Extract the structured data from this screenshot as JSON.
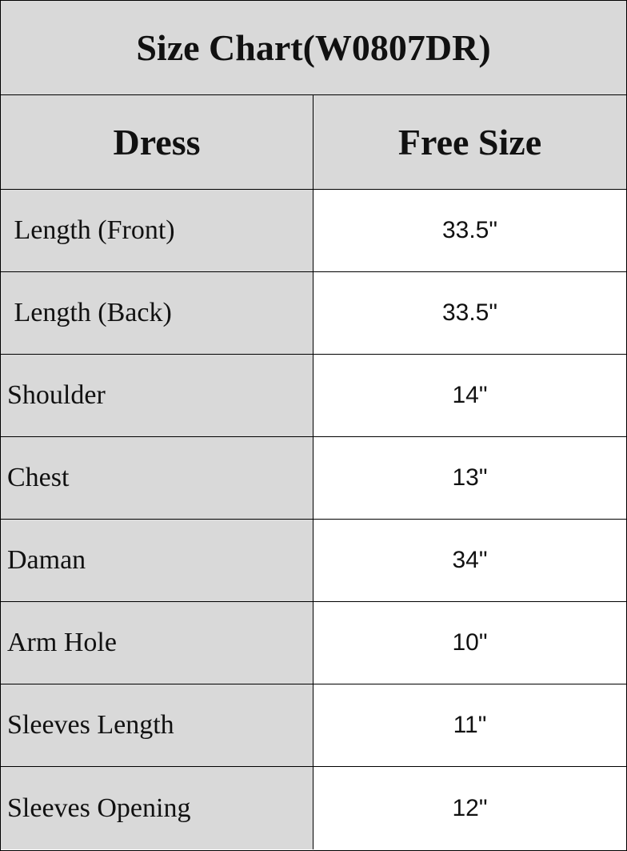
{
  "title": "Size Chart(W0807DR)",
  "headers": [
    "Dress",
    "Free Size"
  ],
  "rows": [
    {
      "label": " Length (Front)",
      "value": "33.5\""
    },
    {
      "label": " Length (Back)",
      "value": "33.5\""
    },
    {
      "label": "Shoulder",
      "value": "14\""
    },
    {
      "label": "Chest",
      "value": "13\""
    },
    {
      "label": "Daman",
      "value": "34\""
    },
    {
      "label": "Arm Hole",
      "value": "10\""
    },
    {
      "label": "Sleeves Length",
      "value": "11\""
    },
    {
      "label": "Sleeves Opening",
      "value": "12\""
    }
  ],
  "colors": {
    "header_bg": "#d9d9d9",
    "cell_bg": "#ffffff",
    "border": "#000000"
  }
}
